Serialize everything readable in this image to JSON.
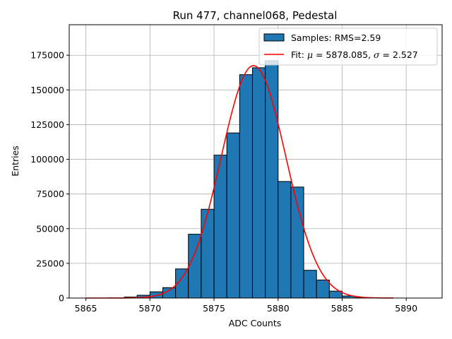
{
  "chart_data": {
    "type": "bar",
    "title": "Run 477, channel068, Pedestal",
    "xlabel": "ADC Counts",
    "ylabel": "Entries",
    "xlim": [
      5863.7,
      5892.8
    ],
    "ylim": [
      0,
      197000
    ],
    "x_ticks": [
      5865,
      5870,
      5875,
      5880,
      5885,
      5890
    ],
    "y_ticks": [
      0,
      25000,
      50000,
      75000,
      100000,
      125000,
      150000,
      175000
    ],
    "grid": true,
    "legend_position": "top-right",
    "series": [
      {
        "name": "Samples: RMS=2.59",
        "kind": "histogram",
        "color": "#1f77b4",
        "edge_color": "#000000",
        "bin_width": 1,
        "bins": [
          {
            "x0": 5868,
            "value": 700
          },
          {
            "x0": 5869,
            "value": 2000
          },
          {
            "x0": 5870,
            "value": 4500
          },
          {
            "x0": 5871,
            "value": 7500
          },
          {
            "x0": 5872,
            "value": 21000
          },
          {
            "x0": 5873,
            "value": 46000
          },
          {
            "x0": 5874,
            "value": 64000
          },
          {
            "x0": 5875,
            "value": 103000
          },
          {
            "x0": 5876,
            "value": 119000
          },
          {
            "x0": 5877,
            "value": 161000
          },
          {
            "x0": 5878,
            "value": 166000
          },
          {
            "x0": 5879,
            "value": 171000
          },
          {
            "x0": 5880,
            "value": 84000
          },
          {
            "x0": 5881,
            "value": 80000
          },
          {
            "x0": 5882,
            "value": 20000
          },
          {
            "x0": 5883,
            "value": 13000
          },
          {
            "x0": 5884,
            "value": 5000
          },
          {
            "x0": 5885,
            "value": 1500
          },
          {
            "x0": 5886,
            "value": 300
          }
        ]
      },
      {
        "name": "Fit",
        "kind": "gaussian",
        "color": "#ff0000",
        "mu": 5878.085,
        "sigma": 2.527,
        "amplitude": 167500,
        "x_range": [
          5865,
          5889
        ]
      }
    ],
    "legend": {
      "samples_label": "Samples: RMS=2.59",
      "fit_prefix": "Fit: ",
      "mu_symbol": "μ",
      "mu_text": " = 5878.085, ",
      "sigma_symbol": "σ",
      "sigma_text": " = 2.527"
    }
  }
}
